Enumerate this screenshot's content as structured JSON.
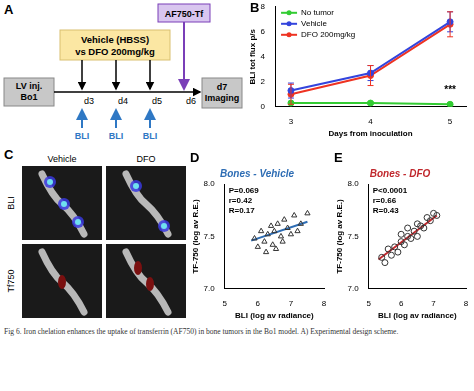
{
  "figure": {
    "caption": "Fig 6. Iron chelation enhances the uptake of transferrin (AF750) in bone tumors in the Bo1 model. A) Experimental design scheme.",
    "panel_A": {
      "label": "A",
      "injection": [
        "LV inj.",
        "Bo1"
      ],
      "treatment": [
        "Vehicle (HBSS)",
        "vs DFO 200mg/kg"
      ],
      "tracer": "AF750-Tf",
      "imaging": [
        "d7",
        "Imaging"
      ],
      "days": [
        "d3",
        "d4",
        "d5",
        "d6"
      ],
      "treatment_days": [
        "d3",
        "d4",
        "d5"
      ],
      "tracer_day": "d6",
      "bli_days": [
        "d3",
        "d4",
        "d5"
      ],
      "bli_label": "BLI"
    },
    "panel_C": {
      "label": "C",
      "columns": [
        "Vehicle",
        "DFO"
      ],
      "rows": [
        "BLI",
        "Tf750"
      ]
    }
  },
  "chart_data": [
    {
      "panel": "B",
      "type": "line",
      "x_label": "Days from inoculation",
      "y_label": "BLI tot flux p/s",
      "x": [
        3,
        4,
        5
      ],
      "xlim": [
        2.8,
        5.2
      ],
      "xticks": [
        3,
        4,
        5
      ],
      "ylim": [
        0,
        8
      ],
      "yticks": [
        0,
        2,
        4,
        6,
        8
      ],
      "grid": false,
      "legend": "top-left",
      "series": [
        {
          "name": "No tumor",
          "color": "#33cc33",
          "marker": "circle",
          "values": [
            0.3,
            0.3,
            0.2
          ],
          "errors": [
            0.1,
            0.1,
            0.1
          ]
        },
        {
          "name": "Vehicle",
          "color": "#3344dd",
          "marker": "circle",
          "values": [
            1.3,
            2.7,
            6.8
          ],
          "errors": [
            0.6,
            0.6,
            0.8
          ]
        },
        {
          "name": "DFO 200mg/kg",
          "color": "#ee3322",
          "marker": "circle",
          "values": [
            1.0,
            2.5,
            6.6
          ],
          "errors": [
            0.8,
            0.8,
            1.0
          ]
        }
      ],
      "annotations": [
        {
          "text": "***",
          "x": 5,
          "y": 0.9
        }
      ]
    },
    {
      "panel": "D",
      "type": "scatter",
      "title": "Bones - Vehicle",
      "color": "#2e6db4",
      "x_label": "BLI (log av radiance)",
      "y_label": "TF-750 (log av R.E.)",
      "xlim": [
        5,
        8
      ],
      "xticks": [
        5,
        6,
        7,
        8
      ],
      "ylim": [
        7,
        8
      ],
      "yticks": [
        {
          "value": 7,
          "label": "7.0"
        },
        {
          "value": 7.5,
          "label": "7.5"
        },
        {
          "value": 8,
          "label": "8.0"
        }
      ],
      "grid": false,
      "annotations": [
        "P=0.069",
        "r=0.42",
        "R=0.17"
      ],
      "series": [
        {
          "type": "scatter",
          "color": "#333333",
          "marker": "open_triangle",
          "x": [
            5.9,
            6.0,
            6.1,
            6.2,
            6.25,
            6.3,
            6.4,
            6.45,
            6.5,
            6.55,
            6.6,
            6.7,
            6.75,
            6.8,
            6.9,
            7.0,
            7.1,
            7.2,
            7.3,
            7.5
          ],
          "values": [
            7.48,
            7.4,
            7.55,
            7.45,
            7.35,
            7.52,
            7.6,
            7.42,
            7.55,
            7.38,
            7.62,
            7.5,
            7.45,
            7.66,
            7.58,
            7.52,
            7.7,
            7.55,
            7.62,
            7.72
          ]
        },
        {
          "type": "line",
          "color": "#2e6db4",
          "marker": "none",
          "x": [
            5.8,
            7.5
          ],
          "values": [
            7.46,
            7.64
          ]
        }
      ]
    },
    {
      "panel": "E",
      "type": "scatter",
      "title": "Bones - DFO",
      "color": "#c0282d",
      "x_label": "BLI (log av radiance)",
      "y_label": "TF-750 (log av R.E.)",
      "xlim": [
        5,
        8
      ],
      "xticks": [
        5,
        6,
        7,
        8
      ],
      "ylim": [
        7,
        8
      ],
      "yticks": [
        {
          "value": 7,
          "label": "7.0"
        },
        {
          "value": 7.5,
          "label": "7.5"
        },
        {
          "value": 8,
          "label": "8.0"
        }
      ],
      "grid": false,
      "annotations": [
        "P<0.0001",
        "r=0.66",
        "R=0.43"
      ],
      "series": [
        {
          "type": "scatter",
          "color": "#333333",
          "marker": "open_circle",
          "x": [
            5.4,
            5.5,
            5.6,
            5.7,
            5.8,
            5.9,
            6.0,
            6.0,
            6.1,
            6.2,
            6.2,
            6.3,
            6.4,
            6.5,
            6.5,
            6.6,
            6.7,
            6.8,
            6.9,
            7.0,
            7.1
          ],
          "values": [
            7.3,
            7.25,
            7.38,
            7.32,
            7.4,
            7.35,
            7.45,
            7.52,
            7.42,
            7.5,
            7.58,
            7.48,
            7.55,
            7.62,
            7.5,
            7.6,
            7.58,
            7.68,
            7.65,
            7.72,
            7.7
          ]
        },
        {
          "type": "line",
          "color": "#c0282d",
          "marker": "none",
          "x": [
            5.3,
            7.1
          ],
          "values": [
            7.28,
            7.7
          ]
        }
      ]
    }
  ]
}
